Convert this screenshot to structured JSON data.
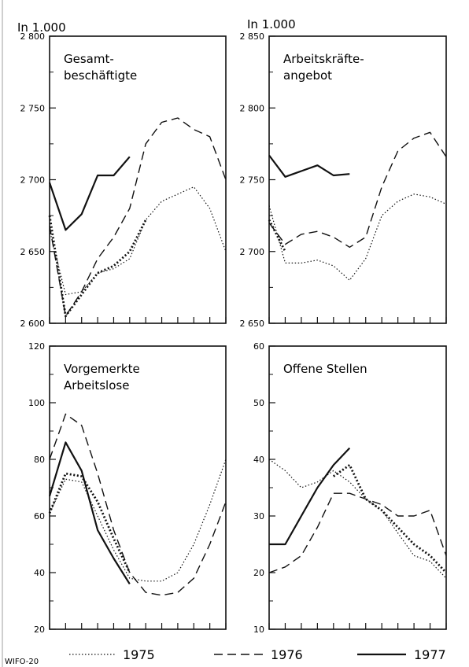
{
  "unit_left": "In 1.000",
  "unit_right": "In 1.000",
  "source_label": "WIFO-20",
  "legend": [
    {
      "name": "1975",
      "style": "dotted"
    },
    {
      "name": "1976",
      "style": "dashed"
    },
    {
      "name": "1977",
      "style": "solid"
    }
  ],
  "chart_data": [
    {
      "type": "line",
      "title": "Gesamt-beschäftigte",
      "title_lines": [
        "Gesamt-",
        "beschäftigte"
      ],
      "x": [
        1,
        2,
        3,
        4,
        5,
        6,
        7,
        8,
        9,
        10,
        11,
        12
      ],
      "xlim": [
        1,
        12
      ],
      "ylim": [
        2600,
        2800
      ],
      "yticks": [
        2600,
        2650,
        2700,
        2750,
        2800
      ],
      "ytick_labels": [
        "2 600",
        "2 650",
        "2 700",
        "2 750",
        "2 800"
      ],
      "series": [
        {
          "name": "1975",
          "style": "dotted",
          "values": [
            2665,
            2620,
            2622,
            2635,
            2638,
            2645,
            2672,
            2685,
            2690,
            2695,
            2680,
            2650
          ]
        },
        {
          "name": "1976",
          "style": "dashed",
          "values": [
            2668,
            2605,
            2622,
            2645,
            2660,
            2680,
            2725,
            2740,
            2743,
            2735,
            2730,
            2700
          ]
        },
        {
          "name": "1977",
          "style": "solid",
          "values": [
            2698,
            2665,
            2676,
            2703,
            2703,
            2716,
            null,
            null,
            null,
            null,
            null,
            null
          ]
        },
        {
          "name": "1975-bold",
          "style": "bolddotted",
          "values": [
            2675,
            2605,
            2620,
            2635,
            2640,
            2650,
            2672,
            null,
            null,
            null,
            null,
            null
          ]
        }
      ]
    },
    {
      "type": "line",
      "title": "Arbeitskräfte-angebot",
      "title_lines": [
        "Arbeitskräfte-",
        "angebot"
      ],
      "x": [
        1,
        2,
        3,
        4,
        5,
        6,
        7,
        8,
        9,
        10,
        11,
        12
      ],
      "xlim": [
        1,
        12
      ],
      "ylim": [
        2650,
        2850
      ],
      "yticks": [
        2650,
        2700,
        2750,
        2800,
        2850
      ],
      "ytick_labels": [
        "2 650",
        "2 700",
        "2 750",
        "2 800",
        "2 850"
      ],
      "series": [
        {
          "name": "1975",
          "style": "dotted",
          "values": [
            2732,
            2692,
            2692,
            2694,
            2690,
            2680,
            2695,
            2725,
            2735,
            2740,
            2738,
            2733
          ]
        },
        {
          "name": "1976",
          "style": "dashed",
          "values": [
            2720,
            2705,
            2712,
            2714,
            2710,
            2703,
            2710,
            2745,
            2770,
            2779,
            2783,
            2766
          ]
        },
        {
          "name": "1977",
          "style": "solid",
          "values": [
            2767,
            2752,
            2756,
            2760,
            2753,
            2754,
            null,
            null,
            null,
            null,
            null,
            null
          ]
        },
        {
          "name": "1975-bold",
          "style": "bolddotted",
          "values": [
            2722,
            2700,
            null,
            null,
            null,
            null,
            null,
            null,
            null,
            null,
            null,
            null
          ]
        }
      ]
    },
    {
      "type": "line",
      "title": "Vorgemerkte Arbeitslose",
      "title_lines": [
        "Vorgemerkte",
        "Arbeitslose"
      ],
      "x": [
        1,
        2,
        3,
        4,
        5,
        6,
        7,
        8,
        9,
        10,
        11,
        12
      ],
      "xlim": [
        1,
        12
      ],
      "ylim": [
        20,
        120
      ],
      "yticks": [
        20,
        40,
        60,
        80,
        100,
        120
      ],
      "ytick_labels": [
        "20",
        "40",
        "60",
        "80",
        "100",
        "120"
      ],
      "series": [
        {
          "name": "1975",
          "style": "dotted",
          "values": [
            61,
            73,
            72,
            60,
            48,
            38,
            37,
            37,
            40,
            50,
            64,
            80
          ]
        },
        {
          "name": "1976",
          "style": "dashed",
          "values": [
            80,
            96,
            92,
            75,
            55,
            40,
            33,
            32,
            33,
            38,
            50,
            65
          ]
        },
        {
          "name": "1977",
          "style": "solid",
          "values": [
            67,
            86,
            76,
            55,
            45,
            36,
            null,
            null,
            null,
            null,
            null,
            null
          ]
        },
        {
          "name": "1975-bold",
          "style": "bolddotted",
          "values": [
            61,
            75,
            74,
            65,
            52,
            40,
            null,
            null,
            null,
            null,
            null,
            null
          ]
        }
      ]
    },
    {
      "type": "line",
      "title": "Offene Stellen",
      "title_lines": [
        "Offene Stellen"
      ],
      "x": [
        1,
        2,
        3,
        4,
        5,
        6,
        7,
        8,
        9,
        10,
        11,
        12
      ],
      "xlim": [
        1,
        12
      ],
      "ylim": [
        10,
        60
      ],
      "yticks": [
        10,
        20,
        30,
        40,
        50,
        60
      ],
      "ytick_labels": [
        "10",
        "20",
        "30",
        "40",
        "50",
        "60"
      ],
      "series": [
        {
          "name": "1975",
          "style": "dotted",
          "values": [
            40,
            38,
            35,
            36,
            38,
            36,
            33,
            31,
            27,
            23,
            22,
            19
          ]
        },
        {
          "name": "1976",
          "style": "dashed",
          "values": [
            20,
            21,
            23,
            28,
            34,
            34,
            33,
            32,
            30,
            30,
            31,
            23
          ]
        },
        {
          "name": "1977",
          "style": "solid",
          "values": [
            25,
            25,
            30,
            35,
            39,
            42,
            null,
            null,
            null,
            null,
            null,
            null
          ]
        },
        {
          "name": "1975-bold",
          "style": "bolddotted",
          "values": [
            null,
            null,
            null,
            null,
            37,
            39,
            33,
            31,
            28,
            25,
            23,
            20
          ]
        }
      ]
    }
  ]
}
